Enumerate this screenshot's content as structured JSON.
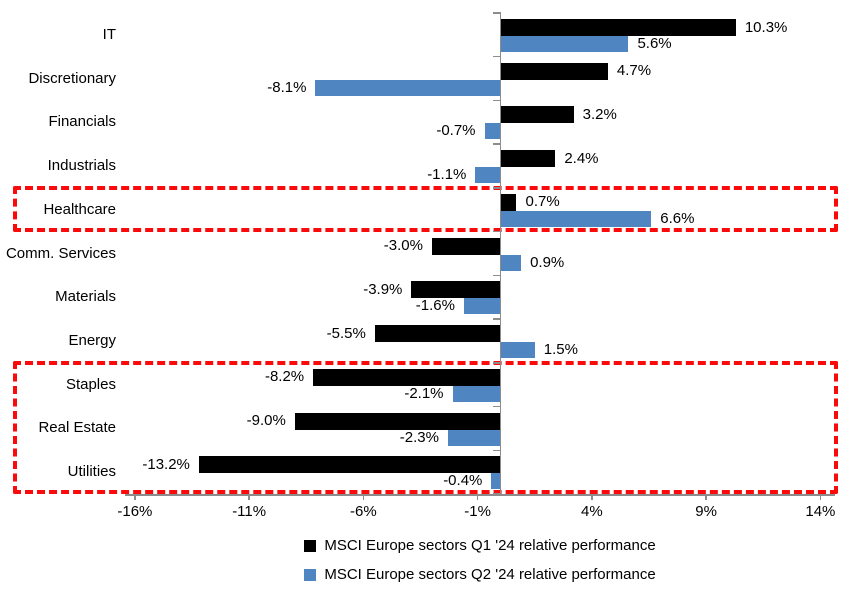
{
  "chart_data": {
    "type": "bar",
    "orientation": "horizontal",
    "title": "",
    "categories": [
      "IT",
      "Discretionary",
      "Financials",
      "Industrials",
      "Healthcare",
      "Comm. Services",
      "Materials",
      "Energy",
      "Staples",
      "Real Estate",
      "Utilities"
    ],
    "series": [
      {
        "name": "MSCI Europe sectors Q1 '24 relative performance",
        "color": "#000000",
        "values": [
          10.3,
          4.7,
          3.2,
          2.4,
          0.7,
          -3.0,
          -3.9,
          -5.5,
          -8.2,
          -9.0,
          -13.2
        ],
        "labels": [
          "10.3%",
          "4.7%",
          "3.2%",
          "2.4%",
          "0.7%",
          "-3.0%",
          "-3.9%",
          "-5.5%",
          "-8.2%",
          "-9.0%",
          "-13.2%"
        ]
      },
      {
        "name": "MSCI Europe sectors Q2 '24 relative performance",
        "color": "#4f86c2",
        "values": [
          5.6,
          -8.1,
          -0.7,
          -1.1,
          6.6,
          0.9,
          -1.6,
          1.5,
          -2.1,
          -2.3,
          -0.4
        ],
        "labels": [
          "5.6%",
          "-8.1%",
          "-0.7%",
          "-1.1%",
          "6.6%",
          "0.9%",
          "-1.6%",
          "1.5%",
          "-2.1%",
          "-2.3%",
          "-0.4%"
        ]
      }
    ],
    "x_axis": {
      "tick_labels": [
        "-16%",
        "-11%",
        "-6%",
        "-1%",
        "4%",
        "9%",
        "14%"
      ],
      "tick_values": [
        -16,
        -11,
        -6,
        -1,
        4,
        9,
        14
      ],
      "min": -16.5,
      "max": 14.6,
      "unit": "%"
    },
    "grid": false,
    "legend_position": "bottom",
    "highlights": [
      {
        "name": "healthcare-highlight",
        "sectors": [
          "Healthcare"
        ],
        "row_start": 4,
        "row_end": 4,
        "color": "#fa0a0a"
      },
      {
        "name": "defensives-highlight",
        "sectors": [
          "Staples",
          "Real Estate",
          "Utilities"
        ],
        "row_start": 8,
        "row_end": 10,
        "color": "#fa0a0a"
      }
    ]
  }
}
